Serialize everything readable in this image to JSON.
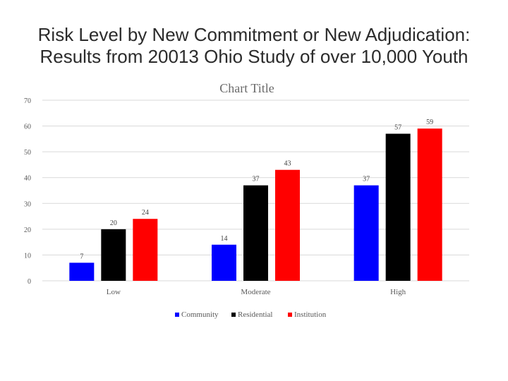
{
  "slide_title": "Risk Level by New Commitment or New Adjudication: Results from 20013 Ohio Study of over 10,000 Youth",
  "chart_data": {
    "type": "bar",
    "title": "Chart Title",
    "categories": [
      "Low",
      "Moderate",
      "High"
    ],
    "series": [
      {
        "name": "Community",
        "values": [
          7,
          14,
          37
        ],
        "color": "#0000ff"
      },
      {
        "name": "Residential",
        "values": [
          20,
          37,
          57
        ],
        "color": "#000000"
      },
      {
        "name": "Institution",
        "values": [
          24,
          43,
          59
        ],
        "color": "#ff0000"
      }
    ],
    "yticks": [
      0,
      10,
      20,
      30,
      40,
      50,
      60,
      70
    ],
    "ylim": [
      0,
      70
    ],
    "grid": true,
    "legend": "bottom",
    "data_labels": true
  }
}
